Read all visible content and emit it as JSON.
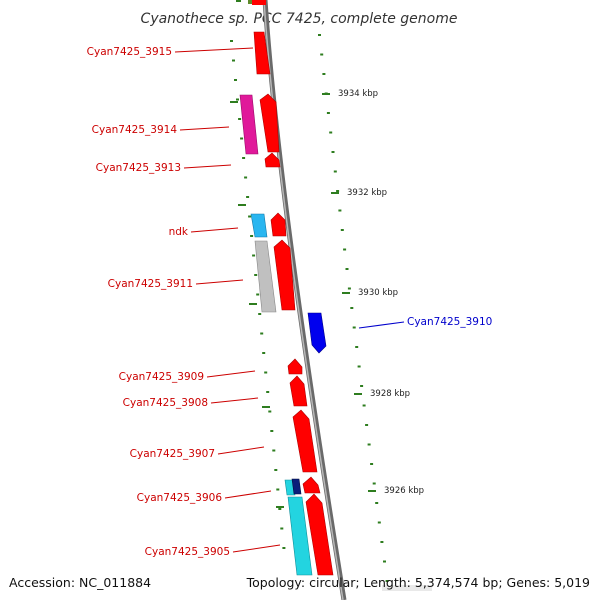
{
  "title": "Cyanothece sp. PCC 7425, complete genome",
  "footer": {
    "accession": "Accession: NC_011884",
    "topology": "Topology: circular; Length: 5,374,574 bp; Genes: 5,019"
  },
  "colors": {
    "forward_gene": "#ff0000",
    "reverse_gene": "#0000ee",
    "label_forward": "#cc0000",
    "label_reverse": "#0000cc",
    "tick_mark": "#2e7d1f",
    "backbone": "#8a8a8a"
  },
  "ticks": [
    "3934 kbp",
    "3932 kbp",
    "3930 kbp",
    "3928 kbp",
    "3926 kbp"
  ],
  "genes": [
    {
      "label": "Cyan7425_3915",
      "strand": "forward"
    },
    {
      "label": "Cyan7425_3914",
      "strand": "forward"
    },
    {
      "label": "Cyan7425_3913",
      "strand": "forward"
    },
    {
      "label": "ndk",
      "strand": "forward"
    },
    {
      "label": "Cyan7425_3911",
      "strand": "forward"
    },
    {
      "label": "Cyan7425_3910",
      "strand": "reverse"
    },
    {
      "label": "Cyan7425_3909",
      "strand": "forward"
    },
    {
      "label": "Cyan7425_3908",
      "strand": "forward"
    },
    {
      "label": "Cyan7425_3907",
      "strand": "forward"
    },
    {
      "label": "Cyan7425_3906",
      "strand": "forward"
    },
    {
      "label": "Cyan7425_3905",
      "strand": "forward"
    }
  ]
}
